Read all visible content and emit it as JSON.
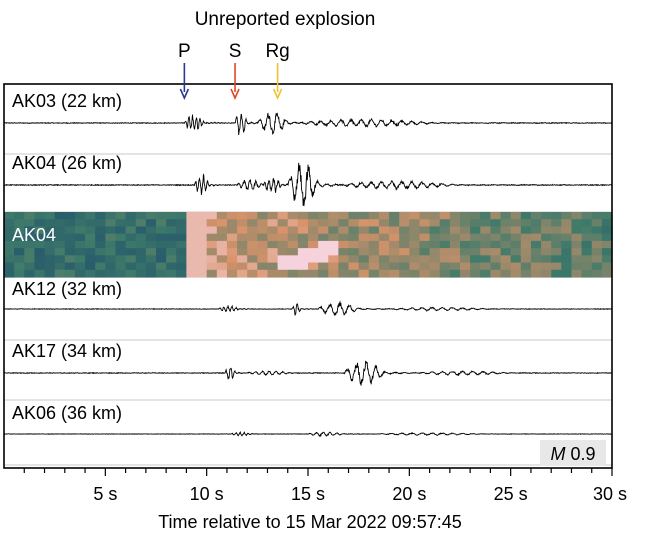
{
  "chart_data": {
    "type": "line",
    "title": "Unreported explosion",
    "xlabel": "Time relative to 15 Mar 2022 09:57:45",
    "ylabel": "",
    "xlim": [
      0,
      30
    ],
    "x_ticks": [
      5,
      10,
      15,
      20,
      25,
      30
    ],
    "x_tick_labels": [
      "5 s",
      "10 s",
      "15 s",
      "20 s",
      "25 s",
      "30 s"
    ],
    "phase_markers": [
      {
        "label": "P",
        "time": 8.9,
        "color": "#2b3a8f"
      },
      {
        "label": "S",
        "time": 11.4,
        "color": "#e0472a"
      },
      {
        "label": "Rg",
        "time": 13.5,
        "color": "#f2c12e"
      }
    ],
    "magnitude": {
      "symbol": "M",
      "value": "0.9"
    },
    "series": [
      {
        "name": "AK03 (22 km)",
        "type": "waveform",
        "packets": [
          {
            "t0": 8.9,
            "dur": 2.2,
            "amp": 0.38,
            "f": 5.5
          },
          {
            "t0": 11.4,
            "dur": 1.4,
            "amp": 0.55,
            "f": 4.0
          },
          {
            "t0": 12.5,
            "dur": 3.5,
            "amp": 0.48,
            "f": 2.3
          },
          {
            "t0": 14.5,
            "dur": 15.0,
            "amp": 0.16,
            "f": 2.0
          }
        ]
      },
      {
        "name": "AK04 (26 km)",
        "type": "waveform",
        "packets": [
          {
            "t0": 9.4,
            "dur": 1.6,
            "amp": 0.45,
            "f": 5.0
          },
          {
            "t0": 11.5,
            "dur": 2.8,
            "amp": 0.22,
            "f": 3.5
          },
          {
            "t0": 12.8,
            "dur": 2.0,
            "amp": 0.35,
            "f": 4.5
          },
          {
            "t0": 14.0,
            "dur": 3.4,
            "amp": 0.95,
            "f": 2.2
          },
          {
            "t0": 16.5,
            "dur": 13.0,
            "amp": 0.16,
            "f": 2.0
          }
        ]
      },
      {
        "name": "AK04",
        "type": "spectrogram",
        "onset": 9.0,
        "rg_start": 13.5,
        "rg_end": 16.5
      },
      {
        "name": "AK12 (32 km)",
        "type": "waveform",
        "packets": [
          {
            "t0": 10.6,
            "dur": 2.2,
            "amp": 0.22,
            "f": 5.0
          },
          {
            "t0": 14.2,
            "dur": 1.0,
            "amp": 0.38,
            "f": 4.5
          },
          {
            "t0": 15.5,
            "dur": 4.5,
            "amp": 0.4,
            "f": 2.1
          },
          {
            "t0": 19.0,
            "dur": 11.0,
            "amp": 0.1,
            "f": 2.0
          }
        ]
      },
      {
        "name": "AK17 (34 km)",
        "type": "waveform",
        "packets": [
          {
            "t0": 10.9,
            "dur": 1.2,
            "amp": 0.36,
            "f": 4.5
          },
          {
            "t0": 12.0,
            "dur": 5.0,
            "amp": 0.1,
            "f": 3.0
          },
          {
            "t0": 16.8,
            "dur": 4.5,
            "amp": 0.58,
            "f": 2.1
          },
          {
            "t0": 20.5,
            "dur": 9.5,
            "amp": 0.1,
            "f": 2.0
          }
        ]
      },
      {
        "name": "AK06 (36 km)",
        "type": "waveform",
        "packets": [
          {
            "t0": 11.2,
            "dur": 2.5,
            "amp": 0.14,
            "f": 5.0
          },
          {
            "t0": 15.0,
            "dur": 4.0,
            "amp": 0.16,
            "f": 3.0
          },
          {
            "t0": 18.5,
            "dur": 11.5,
            "amp": 0.09,
            "f": 2.0
          }
        ]
      }
    ]
  },
  "colors": {
    "frame": "#000000",
    "trace": "#000000",
    "gridline": "#c8c8c8",
    "spec_low": "#1f4f6b",
    "spec_mid": "#3e7a6a",
    "spec_high": "#d9936a",
    "spec_peak": "#f6d2dc"
  }
}
